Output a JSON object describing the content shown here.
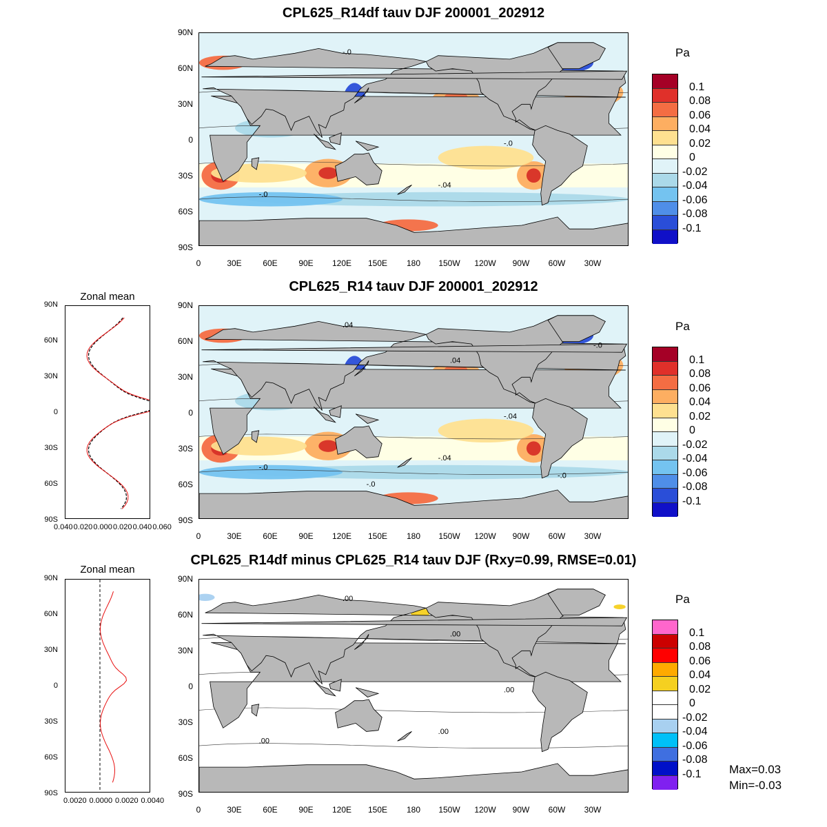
{
  "panels": [
    {
      "title": "CPL625_R14df tauv DJF 200001_202912",
      "has_zonal": false,
      "contour_labels": [
        "-.0",
        "-.04",
        "-.0",
        "-.0"
      ]
    },
    {
      "title": "CPL625_R14 tauv DJF 200001_202912",
      "has_zonal": true,
      "contour_labels": [
        ".04",
        "-.04",
        "-.04",
        "-.0",
        ".04",
        "-.0",
        "-.0",
        "-.0"
      ]
    },
    {
      "title": "CPL625_R14df minus CPL625_R14 tauv DJF (Rxy=0.99, RMSE=0.01)",
      "has_zonal": true,
      "contour_labels": [
        ".00",
        ".00",
        ".00",
        ".00",
        ".00"
      ]
    }
  ],
  "lat_ticks": [
    "90N",
    "60N",
    "30N",
    "0",
    "30S",
    "60S",
    "90S"
  ],
  "lon_ticks": [
    "0",
    "30E",
    "60E",
    "90E",
    "120E",
    "150E",
    "180",
    "150W",
    "120W",
    "90W",
    "60W",
    "30W"
  ],
  "colorbar": {
    "unit": "Pa",
    "labels": [
      "0.1",
      "0.08",
      "0.06",
      "0.04",
      "0.02",
      "0",
      "-0.02",
      "-0.04",
      "-0.06",
      "-0.08",
      "-0.1"
    ],
    "colors_main": [
      "#a50026",
      "#e0302a",
      "#f46d43",
      "#fdae61",
      "#fee090",
      "#ffffe5",
      "#e0f3f8",
      "#abd9e9",
      "#74c3f0",
      "#4f8ee8",
      "#2a4ed8",
      "#1010c8"
    ],
    "colors_diff": [
      "#ff66cc",
      "#cc0000",
      "#ff0000",
      "#ffaa00",
      "#f5d020",
      "#ffffff",
      "#ffffff",
      "#a8d0f0",
      "#00c0f8",
      "#3f6fe0",
      "#0010c8",
      "#8020f0"
    ]
  },
  "zonal": {
    "title": "Zonal mean",
    "lat_ticks": [
      "90N",
      "60N",
      "30N",
      "0",
      "30S",
      "60S",
      "90S"
    ],
    "panel2_xticks": [
      "0.040",
      "0.020",
      "0.000",
      "0.020",
      "0.040",
      "0.060"
    ],
    "panel3_xticks": [
      "0.0020",
      "0.0000",
      "0.0020",
      "0.0040"
    ]
  },
  "stats": {
    "max": "Max=0.03",
    "min": "Min=-0.03"
  },
  "colors": {
    "land": "#b8b8b8",
    "ocean_bg": "#ffffff",
    "red_line": "#e81010",
    "black_line": "#000000"
  }
}
